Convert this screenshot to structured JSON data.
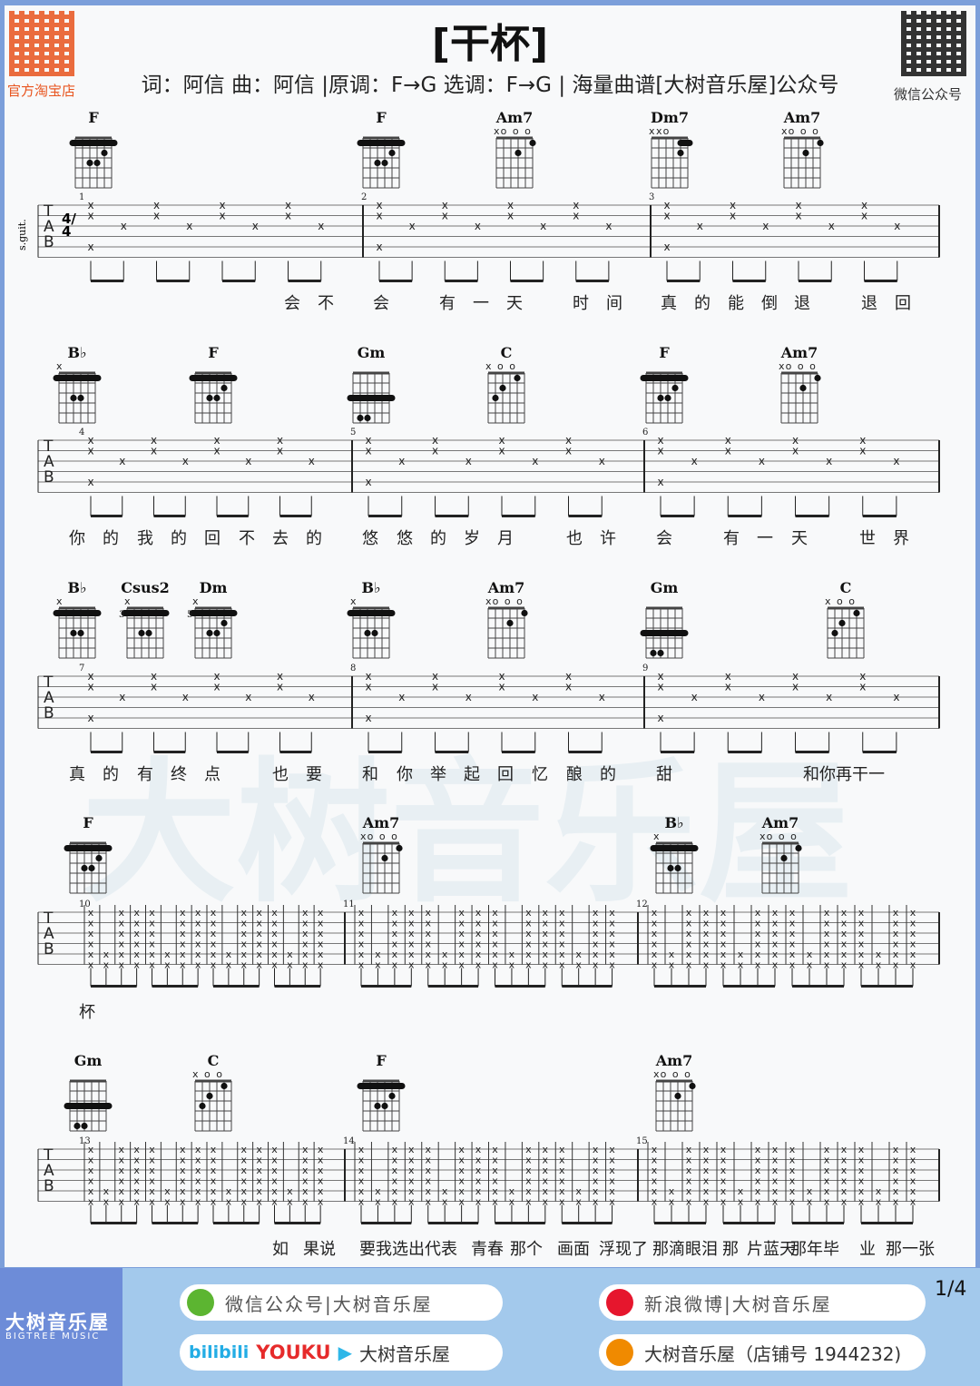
{
  "header": {
    "title": "[干杯]",
    "subtitle": "词：阿信  曲：阿信  |原调：F→G  选调：F→G | 海量曲谱[大树音乐屋]公众号",
    "left_qr_label": "官方淘宝店",
    "right_qr_label": "微信公众号"
  },
  "instrument_label": "s.guit.",
  "time_signature": "4/4",
  "clef": [
    "T",
    "A",
    "B"
  ],
  "watermark": "大树音乐屋",
  "rows": [
    {
      "measures": [
        "1",
        "2",
        "3"
      ],
      "style": "arpeggio",
      "chords": [
        {
          "name": "F",
          "markers": "",
          "barre": 1,
          "dots": [
            [
              2,
              3
            ],
            [
              3,
              3
            ],
            [
              4,
              2
            ]
          ]
        },
        {
          "name": "F",
          "markers": "",
          "barre": 1,
          "dots": [
            [
              2,
              3
            ],
            [
              3,
              3
            ],
            [
              4,
              2
            ]
          ]
        },
        {
          "name": "Am7",
          "markers": "xo o o",
          "dots": [
            [
              3,
              2
            ],
            [
              5,
              1
            ]
          ]
        },
        {
          "name": "Dm7",
          "markers": "xxo",
          "barre2": 1,
          "dots": [
            [
              4,
              2
            ]
          ]
        },
        {
          "name": "Am7",
          "markers": "xo o o",
          "dots": [
            [
              3,
              2
            ],
            [
              5,
              1
            ]
          ]
        }
      ],
      "lyrics": [
        "会",
        "不",
        "会",
        "有",
        "一",
        "天",
        "时",
        "间",
        "真",
        "的",
        "能",
        "倒",
        "退",
        "退",
        "回"
      ]
    },
    {
      "measures": [
        "4",
        "5",
        "6"
      ],
      "style": "arpeggio",
      "chords": [
        {
          "name": "B♭",
          "markers": "x",
          "barre": 1,
          "dots": [
            [
              2,
              3
            ],
            [
              3,
              3
            ]
          ]
        },
        {
          "name": "F",
          "markers": "",
          "barre": 1,
          "dots": [
            [
              2,
              3
            ],
            [
              3,
              3
            ],
            [
              4,
              2
            ]
          ]
        },
        {
          "name": "Gm",
          "markers": "",
          "barre": 3,
          "dots": [
            [
              1,
              5
            ],
            [
              2,
              5
            ]
          ]
        },
        {
          "name": "C",
          "markers": "x  o o",
          "dots": [
            [
              1,
              3
            ],
            [
              2,
              2
            ],
            [
              4,
              1
            ]
          ]
        },
        {
          "name": "F",
          "markers": "",
          "barre": 1,
          "dots": [
            [
              2,
              3
            ],
            [
              3,
              3
            ],
            [
              4,
              2
            ]
          ]
        },
        {
          "name": "Am7",
          "markers": "xo o o",
          "dots": [
            [
              3,
              2
            ],
            [
              5,
              1
            ]
          ]
        }
      ],
      "lyrics": [
        "你",
        "的",
        "我",
        "的",
        "回",
        "不",
        "去",
        "的",
        "悠",
        "悠",
        "的",
        "岁",
        "月",
        "也",
        "许",
        "会",
        "有",
        "一",
        "天",
        "世",
        "界"
      ]
    },
    {
      "measures": [
        "7",
        "8",
        "9"
      ],
      "style": "arpeggio",
      "chords": [
        {
          "name": "B♭",
          "markers": "x",
          "barre": 1,
          "dots": [
            [
              2,
              3
            ],
            [
              3,
              3
            ]
          ]
        },
        {
          "name": "Csus2",
          "markers": "x",
          "pos": "3",
          "barre": 1,
          "dots": [
            [
              2,
              3
            ],
            [
              3,
              3
            ]
          ]
        },
        {
          "name": "Dm",
          "markers": "x",
          "pos": "5",
          "barre": 1,
          "dots": [
            [
              2,
              3
            ],
            [
              3,
              3
            ],
            [
              4,
              2
            ]
          ]
        },
        {
          "name": "B♭",
          "markers": "x",
          "barre": 1,
          "dots": [
            [
              2,
              3
            ],
            [
              3,
              3
            ]
          ]
        },
        {
          "name": "Am7",
          "markers": "xo o o",
          "dots": [
            [
              3,
              2
            ],
            [
              5,
              1
            ]
          ]
        },
        {
          "name": "Gm",
          "markers": "",
          "barre": 3,
          "dots": [
            [
              1,
              5
            ],
            [
              2,
              5
            ]
          ]
        },
        {
          "name": "C",
          "markers": "x  o o",
          "dots": [
            [
              1,
              3
            ],
            [
              2,
              2
            ],
            [
              4,
              1
            ]
          ]
        }
      ],
      "lyrics": [
        "真",
        "的",
        "有",
        "终",
        "点",
        "也",
        "要",
        "和",
        "你",
        "举",
        "起",
        "回",
        "忆",
        "酿",
        "的",
        "甜",
        "和你再干一"
      ]
    },
    {
      "measures": [
        "10",
        "11",
        "12"
      ],
      "style": "strum",
      "chords": [
        {
          "name": "F",
          "markers": "",
          "barre": 1,
          "dots": [
            [
              2,
              3
            ],
            [
              3,
              3
            ],
            [
              4,
              2
            ]
          ]
        },
        {
          "name": "Am7",
          "markers": "xo o o",
          "dots": [
            [
              3,
              2
            ],
            [
              5,
              1
            ]
          ]
        },
        {
          "name": "B♭",
          "markers": "x",
          "barre": 1,
          "dots": [
            [
              2,
              3
            ],
            [
              3,
              3
            ]
          ]
        },
        {
          "name": "Am7",
          "markers": "xo o o",
          "dots": [
            [
              3,
              2
            ],
            [
              5,
              1
            ]
          ]
        }
      ],
      "lyrics": [
        "杯"
      ]
    },
    {
      "measures": [
        "13",
        "14",
        "15"
      ],
      "style": "strum",
      "chords": [
        {
          "name": "Gm",
          "markers": "",
          "barre": 3,
          "dots": [
            [
              1,
              5
            ],
            [
              2,
              5
            ]
          ]
        },
        {
          "name": "C",
          "markers": "x  o o",
          "dots": [
            [
              1,
              3
            ],
            [
              2,
              2
            ],
            [
              4,
              1
            ]
          ]
        },
        {
          "name": "F",
          "markers": "",
          "barre": 1,
          "dots": [
            [
              2,
              3
            ],
            [
              3,
              3
            ],
            [
              4,
              2
            ]
          ]
        },
        {
          "name": "Am7",
          "markers": "xo o o",
          "dots": [
            [
              3,
              2
            ],
            [
              5,
              1
            ]
          ]
        }
      ],
      "lyrics": [
        "如",
        "果说",
        "要我选出代表",
        "青春",
        "那个",
        "画面",
        "浮现了",
        "那滴眼泪",
        "那",
        "片蓝天",
        "那年毕",
        "业",
        "那一张"
      ]
    }
  ],
  "footer": {
    "brand": "大树音乐屋",
    "brand_en": "BIGTREE MUSIC",
    "wechat": "微信公众号|大树音乐屋",
    "weibo": "新浪微博|大树音乐屋",
    "video_bilibili": "bilibili",
    "video_youku": "YOUKU",
    "video_label": "大树音乐屋",
    "taobao": "大树音乐屋（店铺号 1944232)",
    "page": "1/4"
  },
  "colors": {
    "frame": "#7c9fda",
    "footer": "#a3c9ec",
    "footer_left": "#6d8cd8",
    "wechat": "#5cb531",
    "weibo": "#e6162d",
    "taobao": "#f08a00",
    "youku": "#e62b2b",
    "bilibili": "#23ade5"
  }
}
